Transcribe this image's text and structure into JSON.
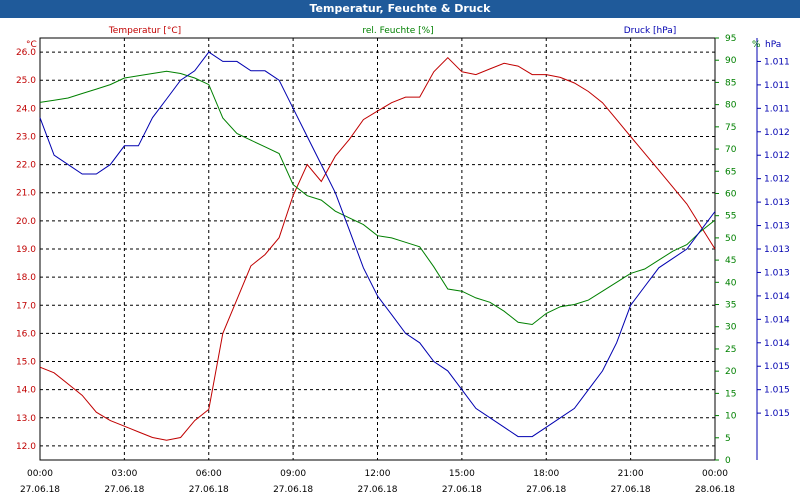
{
  "window": {
    "title": "Temperatur, Feuchte & Druck"
  },
  "colors": {
    "temperature": "#c00000",
    "humidity": "#008000",
    "pressure": "#0000b0",
    "grid": "#000000"
  },
  "chart_data": {
    "type": "line",
    "title": "Temperatur, Feuchte & Druck",
    "grid": true,
    "x_ticks": [
      {
        "time": "00:00",
        "date": "27.06.18"
      },
      {
        "time": "03:00",
        "date": "27.06.18"
      },
      {
        "time": "06:00",
        "date": "27.06.18"
      },
      {
        "time": "09:00",
        "date": "27.06.18"
      },
      {
        "time": "12:00",
        "date": "27.06.18"
      },
      {
        "time": "15:00",
        "date": "27.06.18"
      },
      {
        "time": "18:00",
        "date": "27.06.18"
      },
      {
        "time": "21:00",
        "date": "27.06.18"
      },
      {
        "time": "00:00",
        "date": "28.06.18"
      }
    ],
    "xlim_hours": [
      0,
      24
    ],
    "axes": {
      "temperature": {
        "label": "Temperatur [°C]",
        "unit": "°C",
        "ylim": [
          11.5,
          26.5
        ],
        "ticks": [
          "12.0",
          "13.0",
          "14.0",
          "15.0",
          "16.0",
          "17.0",
          "18.0",
          "19.0",
          "20.0",
          "21.0",
          "22.0",
          "23.0",
          "24.0",
          "25.0",
          "26.0"
        ]
      },
      "humidity": {
        "label": "rel. Feuchte [%]",
        "unit": "%",
        "ylim": [
          0,
          95
        ],
        "ticks": [
          "0",
          "5",
          "10",
          "15",
          "20",
          "25",
          "30",
          "35",
          "40",
          "45",
          "50",
          "55",
          "60",
          "65",
          "70",
          "75",
          "80",
          "85",
          "90",
          "95"
        ]
      },
      "pressure": {
        "label": "Druck [hPa]",
        "unit": "hPa",
        "ylim": [
          1010.75,
          1015.25
        ],
        "ticks": [
          "1.011",
          "1.011",
          "1.011",
          "1.012",
          "1.012",
          "1.012",
          "1.013",
          "1.013",
          "1.013",
          "1.013",
          "1.014",
          "1.014",
          "1.014",
          "1.015",
          "1.015",
          "1.015"
        ]
      }
    },
    "series": [
      {
        "name": "Temperatur [°C]",
        "axis": "temperature",
        "x": [
          0,
          0.5,
          1,
          1.5,
          2,
          2.5,
          3,
          3.5,
          4,
          4.5,
          5,
          5.5,
          6,
          6.5,
          7,
          7.5,
          8,
          8.5,
          9,
          9.5,
          10,
          10.5,
          11,
          11.5,
          12,
          12.5,
          13,
          13.5,
          14,
          14.5,
          15,
          15.5,
          16,
          16.5,
          17,
          17.5,
          18,
          18.5,
          19,
          19.5,
          20,
          20.5,
          21,
          21.5,
          22,
          22.5,
          23,
          23.5,
          24
        ],
        "values": [
          14.8,
          14.6,
          14.2,
          13.8,
          13.2,
          12.9,
          12.7,
          12.5,
          12.3,
          12.2,
          12.3,
          12.9,
          13.3,
          16.0,
          17.2,
          18.4,
          18.8,
          19.4,
          20.9,
          22.0,
          21.4,
          22.3,
          22.9,
          23.6,
          23.9,
          24.2,
          24.4,
          24.4,
          25.3,
          25.8,
          25.3,
          25.2,
          25.4,
          25.6,
          25.5,
          25.2,
          25.2,
          25.1,
          24.9,
          24.6,
          24.2,
          23.6,
          23.0,
          22.4,
          21.8,
          21.2,
          20.6,
          19.8,
          19.0
        ]
      },
      {
        "name": "rel. Feuchte [%]",
        "axis": "humidity",
        "x": [
          0,
          0.5,
          1,
          1.5,
          2,
          2.5,
          3,
          3.5,
          4,
          4.5,
          5,
          5.5,
          6,
          6.5,
          7,
          7.5,
          8,
          8.5,
          9,
          9.5,
          10,
          10.5,
          11,
          11.5,
          12,
          12.5,
          13,
          13.5,
          14,
          14.5,
          15,
          15.5,
          16,
          16.5,
          17,
          17.5,
          18,
          18.5,
          19,
          19.5,
          20,
          20.5,
          21,
          21.5,
          22,
          22.5,
          23,
          23.5,
          24
        ],
        "values": [
          80.5,
          81.0,
          81.5,
          82.5,
          83.5,
          84.5,
          86.0,
          86.5,
          87.0,
          87.5,
          87.0,
          86.0,
          84.5,
          77.0,
          73.5,
          72.0,
          70.5,
          69.0,
          62.0,
          59.5,
          58.5,
          56.0,
          54.5,
          53.0,
          50.5,
          50.0,
          49.0,
          48.0,
          43.5,
          38.5,
          38.0,
          36.5,
          35.5,
          33.5,
          31.0,
          30.5,
          33.0,
          34.5,
          35.0,
          36.0,
          38.0,
          40.0,
          42.0,
          43.0,
          45.0,
          47.0,
          48.5,
          51.5,
          54.0
        ]
      },
      {
        "name": "Druck [hPa]",
        "axis": "pressure",
        "x": [
          0,
          0.5,
          1,
          1.5,
          2,
          2.5,
          3,
          3.5,
          4,
          4.5,
          5,
          5.5,
          6,
          6.5,
          7,
          7.5,
          8,
          8.5,
          9,
          9.5,
          10,
          10.5,
          11,
          11.5,
          12,
          12.5,
          13,
          13.5,
          14,
          14.5,
          15,
          15.5,
          16,
          16.5,
          17,
          17.5,
          18,
          18.5,
          19,
          19.5,
          20,
          20.5,
          21,
          21.5,
          22,
          22.5,
          23,
          23.5,
          24
        ],
        "values": [
          1014.4,
          1014.0,
          1013.9,
          1013.8,
          1013.8,
          1013.9,
          1014.1,
          1014.1,
          1014.4,
          1014.6,
          1014.8,
          1014.9,
          1015.1,
          1015.0,
          1015.0,
          1014.9,
          1014.9,
          1014.8,
          1014.5,
          1014.2,
          1013.9,
          1013.6,
          1013.2,
          1012.8,
          1012.5,
          1012.3,
          1012.1,
          1012.0,
          1011.8,
          1011.7,
          1011.5,
          1011.3,
          1011.2,
          1011.1,
          1011.0,
          1011.0,
          1011.1,
          1011.2,
          1011.3,
          1011.5,
          1011.7,
          1012.0,
          1012.4,
          1012.6,
          1012.8,
          1012.9,
          1013.0,
          1013.2,
          1013.4
        ]
      }
    ]
  }
}
